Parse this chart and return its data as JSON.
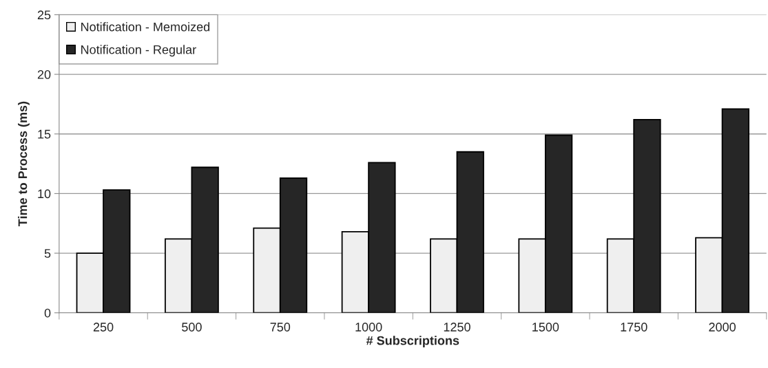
{
  "chart_data": {
    "type": "bar",
    "xlabel": "# Subscriptions",
    "ylabel": "Time to Process (ms)",
    "categories": [
      "250",
      "500",
      "750",
      "1000",
      "1250",
      "1500",
      "1750",
      "2000"
    ],
    "series": [
      {
        "name": "Notification - Memoized",
        "color": "#efefef",
        "values": [
          5.0,
          6.2,
          7.1,
          6.8,
          6.2,
          6.2,
          6.2,
          6.3
        ]
      },
      {
        "name": "Notification - Regular",
        "color": "#262626",
        "values": [
          10.3,
          12.2,
          11.3,
          12.6,
          13.5,
          14.9,
          16.2,
          17.1
        ]
      }
    ],
    "ylim": [
      0,
      25
    ],
    "yticks": [
      0,
      5,
      10,
      15,
      20,
      25
    ],
    "grid": "y",
    "legend": "top left"
  }
}
